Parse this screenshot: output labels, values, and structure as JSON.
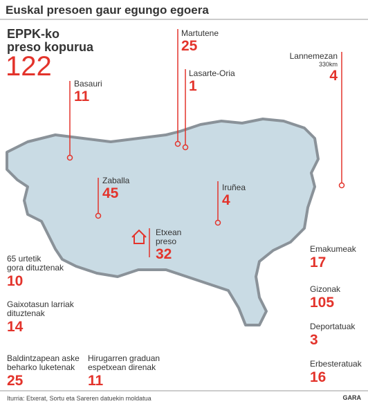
{
  "title": "Euskal presoen gaur egungo egoera",
  "total": {
    "label": [
      "EPPK-ko",
      "preso kopurua"
    ],
    "value": 122
  },
  "locations": [
    {
      "name": [
        "Martutene"
      ],
      "value": 25
    },
    {
      "name": [
        "Lasarte-Oria"
      ],
      "value": 1
    },
    {
      "name": [
        "Lannemezan"
      ],
      "note": "330km",
      "value": 4
    },
    {
      "name": [
        "Basauri"
      ],
      "value": 11
    },
    {
      "name": [
        "Zaballa"
      ],
      "value": 45
    },
    {
      "name": [
        "Iruñea"
      ],
      "value": 4
    },
    {
      "name": [
        "Etxean",
        "preso"
      ],
      "value": 32
    }
  ],
  "stats": [
    {
      "label": [
        "65 urtetik",
        "gora dituztenak"
      ],
      "value": 10
    },
    {
      "label": [
        "Gaixotasun larriak",
        "dituztenak"
      ],
      "value": 14
    },
    {
      "label": [
        "Baldintzapean aske",
        "beharko luketenak"
      ],
      "value": 25
    },
    {
      "label": [
        "Hirugarren graduan",
        "espetxean direnak"
      ],
      "value": 11
    },
    {
      "label": [
        "Emakumeak"
      ],
      "value": 17
    },
    {
      "label": [
        "Gizonak"
      ],
      "value": 105
    },
    {
      "label": [
        "Deportatuak"
      ],
      "value": 3
    },
    {
      "label": [
        "Erbesteratuak"
      ],
      "value": 16
    }
  ],
  "source": "Iturria: Etxerat, Sortu eta Sareren datuekin moldatua",
  "credit": "GARA"
}
